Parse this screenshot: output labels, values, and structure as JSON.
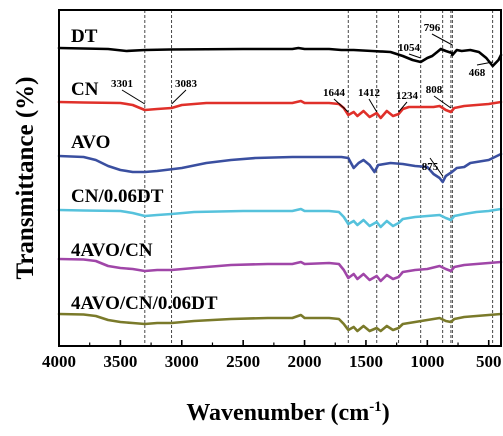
{
  "chart_data": {
    "type": "line",
    "title": "",
    "xlabel": "Wavenumber (cm",
    "xlabel_sup": "-1",
    "xlabel_tail": ")",
    "ylabel": "Transmittance (%)",
    "x_reversed": true,
    "xlim": [
      4000,
      400
    ],
    "x_ticks": [
      "4000",
      "3500",
      "3000",
      "2500",
      "2000",
      "1500",
      "1000",
      "500"
    ],
    "y_ticks_shown": false,
    "grid": false,
    "legend": "none (series labelled directly above each curve)",
    "reference_lines": [
      {
        "x": 3301,
        "label": "3301"
      },
      {
        "x": 3083,
        "label": "3083"
      },
      {
        "x": 1644,
        "label": "1644"
      },
      {
        "x": 1412,
        "label": "1412"
      },
      {
        "x": 1234,
        "label": "1234"
      },
      {
        "x": 1054,
        "label": "1054"
      },
      {
        "x": 875,
        "label": "875"
      },
      {
        "x": 808,
        "label": "808"
      },
      {
        "x": 796,
        "label": "796"
      },
      {
        "x": 468,
        "label": "468"
      }
    ],
    "series": [
      {
        "name": "DT",
        "color": "#000000",
        "points": [
          [
            4000,
            48
          ],
          [
            3800,
            48.5
          ],
          [
            3600,
            49
          ],
          [
            3450,
            51
          ],
          [
            3300,
            50
          ],
          [
            3100,
            49.5
          ],
          [
            2500,
            49
          ],
          [
            2100,
            49
          ],
          [
            2050,
            48
          ],
          [
            2000,
            49
          ],
          [
            1800,
            49
          ],
          [
            1700,
            50
          ],
          [
            1600,
            50
          ],
          [
            1450,
            51
          ],
          [
            1300,
            52
          ],
          [
            1200,
            56
          ],
          [
            1120,
            60
          ],
          [
            1054,
            62
          ],
          [
            1000,
            58
          ],
          [
            960,
            56
          ],
          [
            920,
            52
          ],
          [
            890,
            49
          ],
          [
            850,
            51
          ],
          [
            800,
            53
          ],
          [
            796,
            55
          ],
          [
            760,
            50
          ],
          [
            720,
            51
          ],
          [
            650,
            50
          ],
          [
            580,
            52
          ],
          [
            520,
            58
          ],
          [
            468,
            66
          ],
          [
            420,
            60
          ],
          [
            400,
            55
          ]
        ]
      },
      {
        "name": "CN",
        "color": "#e0302a",
        "points": [
          [
            4000,
            102
          ],
          [
            3800,
            102.5
          ],
          [
            3500,
            103
          ],
          [
            3400,
            105
          ],
          [
            3301,
            110
          ],
          [
            3200,
            109
          ],
          [
            3083,
            108
          ],
          [
            3000,
            105
          ],
          [
            2800,
            103
          ],
          [
            2500,
            103
          ],
          [
            2100,
            103
          ],
          [
            2030,
            101
          ],
          [
            2000,
            103
          ],
          [
            1800,
            103
          ],
          [
            1720,
            104
          ],
          [
            1680,
            108
          ],
          [
            1644,
            115
          ],
          [
            1600,
            112
          ],
          [
            1570,
            116
          ],
          [
            1520,
            111
          ],
          [
            1470,
            117
          ],
          [
            1412,
            113
          ],
          [
            1380,
            118
          ],
          [
            1330,
            111
          ],
          [
            1280,
            116
          ],
          [
            1234,
            114
          ],
          [
            1200,
            109
          ],
          [
            1150,
            107
          ],
          [
            1050,
            107
          ],
          [
            950,
            107
          ],
          [
            900,
            106
          ],
          [
            850,
            110
          ],
          [
            808,
            112
          ],
          [
            780,
            108
          ],
          [
            700,
            106
          ],
          [
            600,
            105
          ],
          [
            500,
            104
          ],
          [
            400,
            102
          ]
        ]
      },
      {
        "name": "AVO",
        "color": "#3a4fa0",
        "points": [
          [
            4000,
            156
          ],
          [
            3800,
            157
          ],
          [
            3700,
            160
          ],
          [
            3600,
            166
          ],
          [
            3500,
            170
          ],
          [
            3400,
            172
          ],
          [
            3300,
            172
          ],
          [
            3200,
            171
          ],
          [
            3000,
            168
          ],
          [
            2800,
            163
          ],
          [
            2600,
            160
          ],
          [
            2400,
            158
          ],
          [
            2100,
            157
          ],
          [
            2000,
            157
          ],
          [
            1800,
            157
          ],
          [
            1700,
            157
          ],
          [
            1644,
            158
          ],
          [
            1600,
            168
          ],
          [
            1560,
            163
          ],
          [
            1520,
            160
          ],
          [
            1470,
            165
          ],
          [
            1430,
            172
          ],
          [
            1400,
            165
          ],
          [
            1300,
            163
          ],
          [
            1200,
            164
          ],
          [
            1100,
            166
          ],
          [
            1000,
            167
          ],
          [
            950,
            174
          ],
          [
            900,
            178
          ],
          [
            875,
            182
          ],
          [
            850,
            176
          ],
          [
            800,
            172
          ],
          [
            760,
            168
          ],
          [
            700,
            167
          ],
          [
            650,
            163
          ],
          [
            600,
            162
          ],
          [
            500,
            160
          ],
          [
            400,
            154
          ]
        ]
      },
      {
        "name": "CN/0.06DT",
        "color": "#56c2dc",
        "points": [
          [
            4000,
            210
          ],
          [
            3800,
            210.5
          ],
          [
            3500,
            211
          ],
          [
            3400,
            213
          ],
          [
            3301,
            216
          ],
          [
            3200,
            215
          ],
          [
            3083,
            214
          ],
          [
            2900,
            212
          ],
          [
            2500,
            211
          ],
          [
            2100,
            211
          ],
          [
            2030,
            209
          ],
          [
            2000,
            211
          ],
          [
            1800,
            211
          ],
          [
            1720,
            212
          ],
          [
            1680,
            217
          ],
          [
            1644,
            224
          ],
          [
            1600,
            221
          ],
          [
            1570,
            225
          ],
          [
            1520,
            220
          ],
          [
            1470,
            226
          ],
          [
            1412,
            222
          ],
          [
            1380,
            227
          ],
          [
            1330,
            221
          ],
          [
            1280,
            226
          ],
          [
            1234,
            223
          ],
          [
            1200,
            219
          ],
          [
            1100,
            217
          ],
          [
            1000,
            216
          ],
          [
            900,
            215
          ],
          [
            850,
            218
          ],
          [
            808,
            220
          ],
          [
            780,
            216
          ],
          [
            700,
            214
          ],
          [
            600,
            212
          ],
          [
            500,
            211
          ],
          [
            400,
            209
          ]
        ]
      },
      {
        "name": "4AVO/CN",
        "color": "#a046a8",
        "points": [
          [
            4000,
            259
          ],
          [
            3800,
            259.5
          ],
          [
            3700,
            261
          ],
          [
            3600,
            266
          ],
          [
            3500,
            268
          ],
          [
            3400,
            269
          ],
          [
            3301,
            271
          ],
          [
            3200,
            270
          ],
          [
            3083,
            270
          ],
          [
            2900,
            268
          ],
          [
            2600,
            265
          ],
          [
            2300,
            264
          ],
          [
            2100,
            264
          ],
          [
            2030,
            262
          ],
          [
            2000,
            264
          ],
          [
            1800,
            263
          ],
          [
            1720,
            264
          ],
          [
            1680,
            270
          ],
          [
            1644,
            278
          ],
          [
            1600,
            274
          ],
          [
            1570,
            279
          ],
          [
            1520,
            274
          ],
          [
            1470,
            280
          ],
          [
            1412,
            276
          ],
          [
            1380,
            281
          ],
          [
            1330,
            275
          ],
          [
            1280,
            279
          ],
          [
            1234,
            277
          ],
          [
            1200,
            272
          ],
          [
            1100,
            270
          ],
          [
            1000,
            269
          ],
          [
            900,
            266
          ],
          [
            850,
            269
          ],
          [
            808,
            271
          ],
          [
            780,
            267
          ],
          [
            700,
            265
          ],
          [
            600,
            264
          ],
          [
            500,
            263
          ],
          [
            400,
            262
          ]
        ]
      },
      {
        "name": "4AVO/CN/0.06DT",
        "color": "#7a7a2a",
        "points": [
          [
            4000,
            314
          ],
          [
            3800,
            314.5
          ],
          [
            3700,
            316
          ],
          [
            3600,
            320
          ],
          [
            3500,
            322
          ],
          [
            3400,
            323
          ],
          [
            3301,
            324
          ],
          [
            3200,
            323
          ],
          [
            3083,
            323
          ],
          [
            2900,
            321
          ],
          [
            2600,
            319
          ],
          [
            2300,
            318
          ],
          [
            2100,
            318
          ],
          [
            2030,
            315
          ],
          [
            2000,
            318
          ],
          [
            1800,
            318
          ],
          [
            1720,
            319
          ],
          [
            1680,
            324
          ],
          [
            1644,
            330
          ],
          [
            1600,
            327
          ],
          [
            1570,
            331
          ],
          [
            1520,
            326
          ],
          [
            1470,
            331
          ],
          [
            1412,
            328
          ],
          [
            1380,
            331
          ],
          [
            1330,
            326
          ],
          [
            1280,
            330
          ],
          [
            1234,
            328
          ],
          [
            1200,
            324
          ],
          [
            1100,
            322
          ],
          [
            1000,
            320
          ],
          [
            900,
            318
          ],
          [
            850,
            321
          ],
          [
            808,
            322
          ],
          [
            780,
            319
          ],
          [
            700,
            317
          ],
          [
            600,
            316
          ],
          [
            500,
            315
          ],
          [
            400,
            314
          ]
        ]
      }
    ]
  }
}
